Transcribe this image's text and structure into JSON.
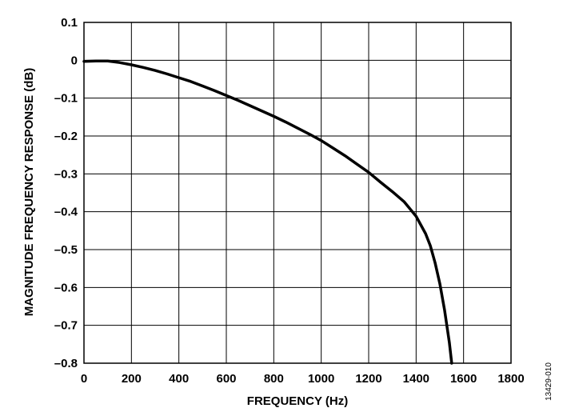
{
  "chart_data": {
    "type": "line",
    "title": "",
    "xlabel": "FREQUENCY (Hz)",
    "ylabel": "MAGNITUDE FREQUENCY RESPONSE (dB)",
    "xlim": [
      0,
      1800
    ],
    "ylim": [
      -0.8,
      0.1
    ],
    "x_ticks": [
      0,
      200,
      400,
      600,
      800,
      1000,
      1200,
      1400,
      1600,
      1800
    ],
    "x_tick_labels": [
      "0",
      "200",
      "400",
      "600",
      "800",
      "1000",
      "1200",
      "1400",
      "1600",
      "1800"
    ],
    "y_ticks": [
      0.1,
      0,
      -0.1,
      -0.2,
      -0.3,
      -0.4,
      -0.5,
      -0.6,
      -0.7,
      -0.8
    ],
    "y_tick_labels": [
      "0.1",
      "0",
      "–0.1",
      "–0.2",
      "–0.3",
      "–0.4",
      "–0.5",
      "–0.6",
      "–0.7",
      "–0.8"
    ],
    "grid": true,
    "legend": "none",
    "line_color": "#000000",
    "series": [
      {
        "x": [
          0,
          50,
          100,
          150,
          200,
          250,
          300,
          350,
          400,
          450,
          500,
          550,
          600,
          650,
          700,
          750,
          800,
          850,
          900,
          950,
          1000,
          1050,
          1100,
          1150,
          1200,
          1250,
          1300,
          1350,
          1400,
          1420,
          1440,
          1460,
          1480,
          1500,
          1520,
          1540,
          1550
        ],
        "y": [
          -0.003,
          -0.002,
          -0.002,
          -0.006,
          -0.012,
          -0.019,
          -0.027,
          -0.036,
          -0.046,
          -0.056,
          -0.068,
          -0.08,
          -0.093,
          -0.106,
          -0.12,
          -0.134,
          -0.148,
          -0.163,
          -0.179,
          -0.195,
          -0.212,
          -0.232,
          -0.252,
          -0.274,
          -0.296,
          -0.322,
          -0.347,
          -0.374,
          -0.412,
          -0.435,
          -0.458,
          -0.49,
          -0.535,
          -0.59,
          -0.66,
          -0.745,
          -0.8
        ]
      }
    ]
  },
  "figure_id": "13429-010"
}
